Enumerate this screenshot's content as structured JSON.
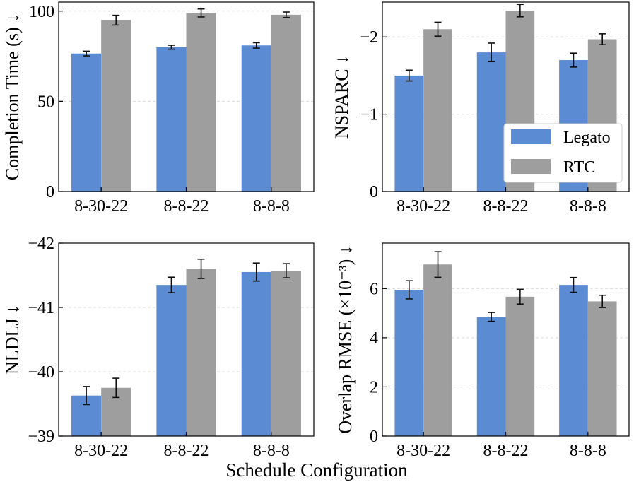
{
  "xlabel": "Schedule Configuration",
  "legend": {
    "position": "lower right of top-right panel",
    "items": [
      {
        "label": "Legato",
        "color": "#5b8bd2"
      },
      {
        "label": "RTC",
        "color": "#9e9e9e"
      }
    ]
  },
  "chart_data": [
    {
      "type": "bar",
      "categories": [
        "8-30-22",
        "8-8-22",
        "8-8-8"
      ],
      "ylabel": "Completion Time (s) ↓",
      "ylim": [
        0,
        105
      ],
      "inverted": false,
      "yticks": [
        0,
        50,
        100
      ],
      "ytick_labels": [
        "0",
        "50",
        "100"
      ],
      "grid": true,
      "series": [
        {
          "name": "Legato",
          "color": "#5b8bd2",
          "values": [
            76.5,
            80,
            81
          ],
          "errors": [
            1.3,
            1.1,
            1.5
          ]
        },
        {
          "name": "RTC",
          "color": "#9e9e9e",
          "values": [
            95,
            99,
            98
          ],
          "errors": [
            2.7,
            2.2,
            1.5
          ]
        }
      ]
    },
    {
      "type": "bar",
      "categories": [
        "8-30-22",
        "8-8-22",
        "8-8-8"
      ],
      "ylabel": "NSPARC ↓",
      "ylim": [
        0,
        -2.45
      ],
      "inverted": true,
      "yticks": [
        0,
        -1,
        -2
      ],
      "ytick_labels": [
        "0",
        "−1",
        "−2"
      ],
      "grid": true,
      "series": [
        {
          "name": "Legato",
          "color": "#5b8bd2",
          "values": [
            -1.5,
            -1.8,
            -1.7
          ],
          "errors": [
            0.07,
            0.12,
            0.09
          ]
        },
        {
          "name": "RTC",
          "color": "#9e9e9e",
          "values": [
            -2.1,
            -2.34,
            -1.97
          ],
          "errors": [
            0.09,
            0.08,
            0.07
          ]
        }
      ]
    },
    {
      "type": "bar",
      "categories": [
        "8-30-22",
        "8-8-22",
        "8-8-8"
      ],
      "ylabel": "NLDLJ ↓",
      "ylim": [
        -39,
        -42
      ],
      "inverted": true,
      "yticks": [
        -39,
        -40,
        -41,
        -42
      ],
      "ytick_labels": [
        "−39",
        "−40",
        "−41",
        "−42"
      ],
      "grid": true,
      "series": [
        {
          "name": "Legato",
          "color": "#5b8bd2",
          "values": [
            -39.63,
            -41.35,
            -41.55
          ],
          "errors": [
            0.14,
            0.12,
            0.14
          ]
        },
        {
          "name": "RTC",
          "color": "#9e9e9e",
          "values": [
            -39.75,
            -41.6,
            -41.57
          ],
          "errors": [
            0.15,
            0.15,
            0.11
          ]
        }
      ]
    },
    {
      "type": "bar",
      "categories": [
        "8-30-22",
        "8-8-22",
        "8-8-8"
      ],
      "ylabel": "Overlap RMSE (×10⁻³) ↓",
      "ylim": [
        0,
        7.85
      ],
      "inverted": false,
      "yticks": [
        0,
        2,
        4,
        6
      ],
      "ytick_labels": [
        "0",
        "2",
        "4",
        "6"
      ],
      "grid": true,
      "series": [
        {
          "name": "Legato",
          "color": "#5b8bd2",
          "values": [
            5.95,
            4.85,
            6.15
          ],
          "errors": [
            0.37,
            0.18,
            0.3
          ]
        },
        {
          "name": "RTC",
          "color": "#9e9e9e",
          "values": [
            6.98,
            5.67,
            5.48
          ],
          "errors": [
            0.52,
            0.3,
            0.25
          ]
        }
      ]
    }
  ]
}
